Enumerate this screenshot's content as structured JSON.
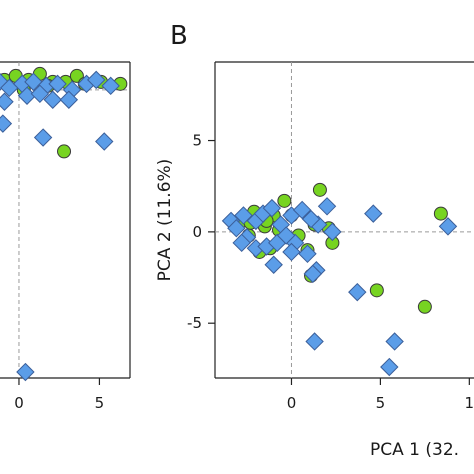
{
  "chart_data": [
    {
      "panel": "",
      "type": "scatter",
      "xlim": [
        -1.8,
        6.9
      ],
      "ylim": [
        -8.3,
        7.6
      ],
      "x_ticks": [
        "0",
        "5"
      ],
      "y_ticks": [],
      "xlabel": "",
      "ylabel": "",
      "ref_lines": {
        "x": 0,
        "y": 6.2
      },
      "colors": {
        "circle": "#77d421",
        "diamond": "#5b9de8"
      },
      "series": [
        {
          "marker": "circle",
          "points": [
            [
              -0.9,
              6.7
            ],
            [
              -0.2,
              6.9
            ],
            [
              0.6,
              6.7
            ],
            [
              1.3,
              7.0
            ],
            [
              2.1,
              6.6
            ],
            [
              2.9,
              6.6
            ],
            [
              3.6,
              6.9
            ],
            [
              5.1,
              6.6
            ],
            [
              6.3,
              6.5
            ],
            [
              4.1,
              6.5
            ],
            [
              1.8,
              6.4
            ],
            [
              0.3,
              6.2
            ],
            [
              2.8,
              3.1
            ]
          ]
        },
        {
          "marker": "diamond",
          "points": [
            [
              -1.2,
              6.6
            ],
            [
              -0.6,
              6.3
            ],
            [
              0.2,
              6.5
            ],
            [
              0.9,
              6.6
            ],
            [
              1.7,
              6.4
            ],
            [
              2.4,
              6.5
            ],
            [
              3.3,
              6.2
            ],
            [
              4.2,
              6.5
            ],
            [
              4.8,
              6.7
            ],
            [
              5.7,
              6.4
            ],
            [
              -0.9,
              5.6
            ],
            [
              0.5,
              5.9
            ],
            [
              1.3,
              6.0
            ],
            [
              2.1,
              5.7
            ],
            [
              3.1,
              5.7
            ],
            [
              -1.0,
              4.5
            ],
            [
              1.5,
              3.8
            ],
            [
              5.3,
              3.6
            ],
            [
              0.4,
              -8.0
            ]
          ]
        }
      ]
    },
    {
      "panel": "B",
      "type": "scatter",
      "xlim": [
        -4.3,
        10.6
      ],
      "ylim": [
        -8.0,
        9.3
      ],
      "x_ticks": [
        "0",
        "5",
        "1"
      ],
      "y_ticks": [
        "5",
        "0",
        "-5"
      ],
      "xlabel": "PCA 1 (32.",
      "ylabel": "PCA 2 (11.6%)",
      "ref_lines": {
        "x": 0,
        "y": 0
      },
      "colors": {
        "circle": "#77d421",
        "diamond": "#5b9de8"
      },
      "series": [
        {
          "marker": "circle",
          "points": [
            [
              -2.8,
              0.6
            ],
            [
              -2.1,
              1.1
            ],
            [
              -1.5,
              0.3
            ],
            [
              -1.0,
              0.9
            ],
            [
              -0.4,
              1.7
            ],
            [
              0.0,
              0.9
            ],
            [
              -2.4,
              -0.2
            ],
            [
              -1.8,
              -1.1
            ],
            [
              -1.2,
              -0.9
            ],
            [
              0.4,
              -0.2
            ],
            [
              1.3,
              0.4
            ],
            [
              1.6,
              2.3
            ],
            [
              1.1,
              -2.4
            ],
            [
              2.1,
              0.2
            ],
            [
              4.8,
              -3.2
            ],
            [
              7.5,
              -4.1
            ],
            [
              8.4,
              1.0
            ],
            [
              -0.7,
              0.1
            ],
            [
              -2.3,
              0.5
            ],
            [
              2.3,
              -0.6
            ],
            [
              -1.4,
              0.6
            ],
            [
              0.9,
              -1.0
            ]
          ]
        },
        {
          "marker": "diamond",
          "points": [
            [
              -3.4,
              0.6
            ],
            [
              -2.7,
              0.9
            ],
            [
              -2.0,
              0.6
            ],
            [
              -1.6,
              1.0
            ],
            [
              -1.1,
              1.3
            ],
            [
              -0.6,
              0.4
            ],
            [
              0.0,
              0.9
            ],
            [
              0.6,
              1.2
            ],
            [
              -2.5,
              -0.3
            ],
            [
              -2.8,
              -0.6
            ],
            [
              -2.0,
              -0.9
            ],
            [
              -1.4,
              -0.8
            ],
            [
              -0.8,
              -0.6
            ],
            [
              0.2,
              -0.6
            ],
            [
              1.5,
              0.4
            ],
            [
              2.3,
              0.0
            ],
            [
              1.1,
              0.7
            ],
            [
              -1.0,
              -1.8
            ],
            [
              0.0,
              -1.1
            ],
            [
              0.9,
              -1.2
            ],
            [
              1.4,
              -2.1
            ],
            [
              2.0,
              1.4
            ],
            [
              1.2,
              -2.3
            ],
            [
              3.7,
              -3.3
            ],
            [
              4.6,
              1.0
            ],
            [
              5.8,
              -6.0
            ],
            [
              5.5,
              -7.4
            ],
            [
              1.3,
              -6.0
            ],
            [
              8.8,
              0.3
            ],
            [
              -3.1,
              0.2
            ],
            [
              -0.3,
              -0.2
            ]
          ]
        }
      ]
    }
  ]
}
